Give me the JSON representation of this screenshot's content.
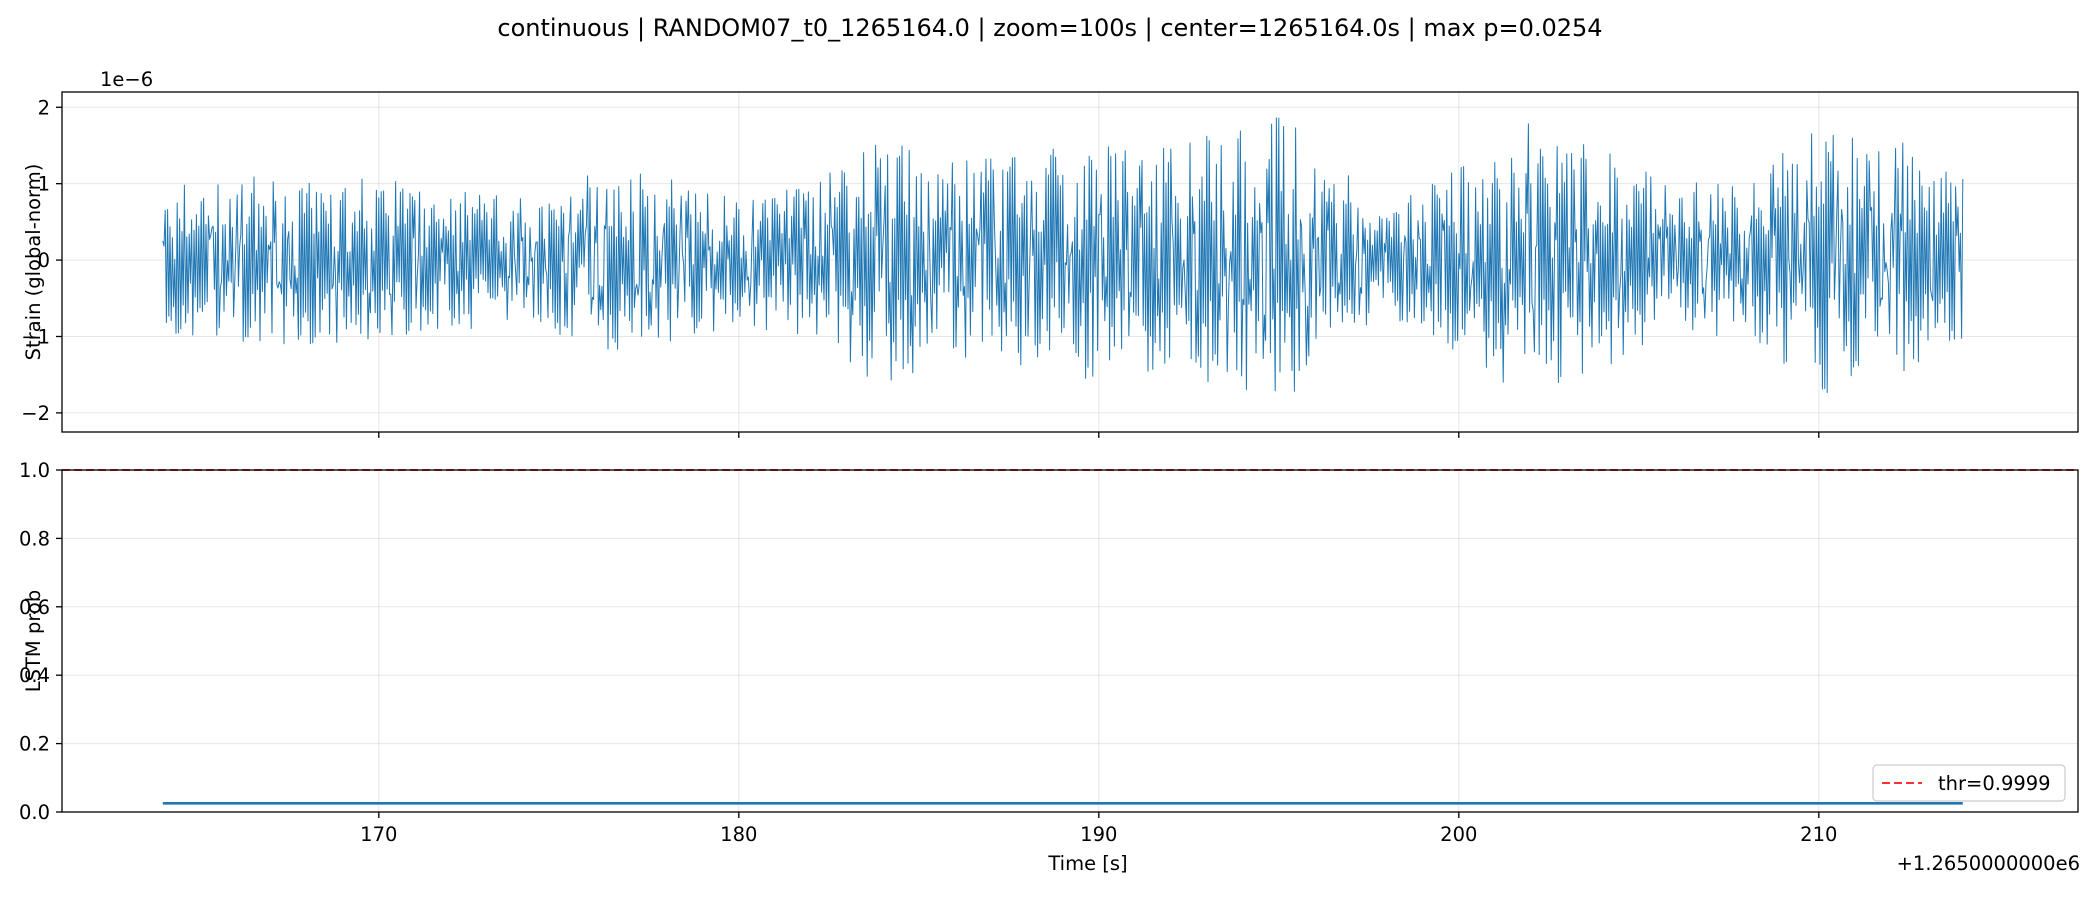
{
  "figure": {
    "title": "continuous | RANDOM07_t0_1265164.0 | zoom=100s | center=1265164.0s | max p=0.0254"
  },
  "chart_data": [
    {
      "type": "line",
      "ylabel": "Strain (global-norm)",
      "y_scale_label": "1e−6",
      "xlim": [
        161.2,
        217.2
      ],
      "ylim": [
        -2.25,
        2.2
      ],
      "y_ticks": [
        2,
        1,
        0,
        -1,
        -2
      ],
      "y_tick_labels": [
        "2",
        "1",
        "0",
        "−1",
        "−2"
      ],
      "x_ticks": [
        170,
        180,
        190,
        200,
        210
      ],
      "x_tick_labels_shown": false,
      "grid": true,
      "series": [
        {
          "color": "#1f77b4",
          "x_start": 164.0,
          "x_end": 214.0,
          "envelope_x": [
            164,
            166,
            168,
            170,
            172,
            174,
            176,
            178,
            180,
            182,
            184,
            186,
            188,
            190,
            192,
            194,
            195,
            196,
            198,
            200,
            202,
            204,
            206,
            208,
            210,
            212,
            214
          ],
          "envelope_amplitude": [
            1.0,
            1.1,
            1.1,
            1.15,
            0.95,
            0.8,
            1.25,
            1.1,
            0.85,
            1.05,
            1.65,
            1.3,
            1.4,
            1.6,
            1.55,
            1.75,
            1.95,
            1.5,
            0.7,
            1.3,
            1.8,
            1.45,
            1.05,
            1.0,
            1.85,
            1.65,
            1.1
          ],
          "y_min_shown": -2.05,
          "y_max_shown": 1.98
        }
      ]
    },
    {
      "type": "line",
      "xlabel": "Time [s]",
      "ylabel": "LSTM prob",
      "x_offset_label": "+1.2650000000e6",
      "xlim": [
        161.2,
        217.2
      ],
      "ylim": [
        0.0,
        1.0
      ],
      "x_ticks": [
        170,
        180,
        190,
        200,
        210
      ],
      "x_tick_labels": [
        "170",
        "180",
        "190",
        "200",
        "210"
      ],
      "y_ticks": [
        0.0,
        0.2,
        0.4,
        0.6,
        0.8,
        1.0
      ],
      "y_tick_labels": [
        "0.0",
        "0.2",
        "0.4",
        "0.6",
        "0.8",
        "1.0"
      ],
      "grid": true,
      "legend_position": "lower-right",
      "series": [
        {
          "color": "#1f77b4",
          "x": [
            164.0,
            214.0
          ],
          "y": [
            0.0254,
            0.0254
          ]
        },
        {
          "name": "thr=0.9999",
          "color": "#ff0000",
          "style": "dashed",
          "y": 0.9999
        }
      ]
    }
  ]
}
